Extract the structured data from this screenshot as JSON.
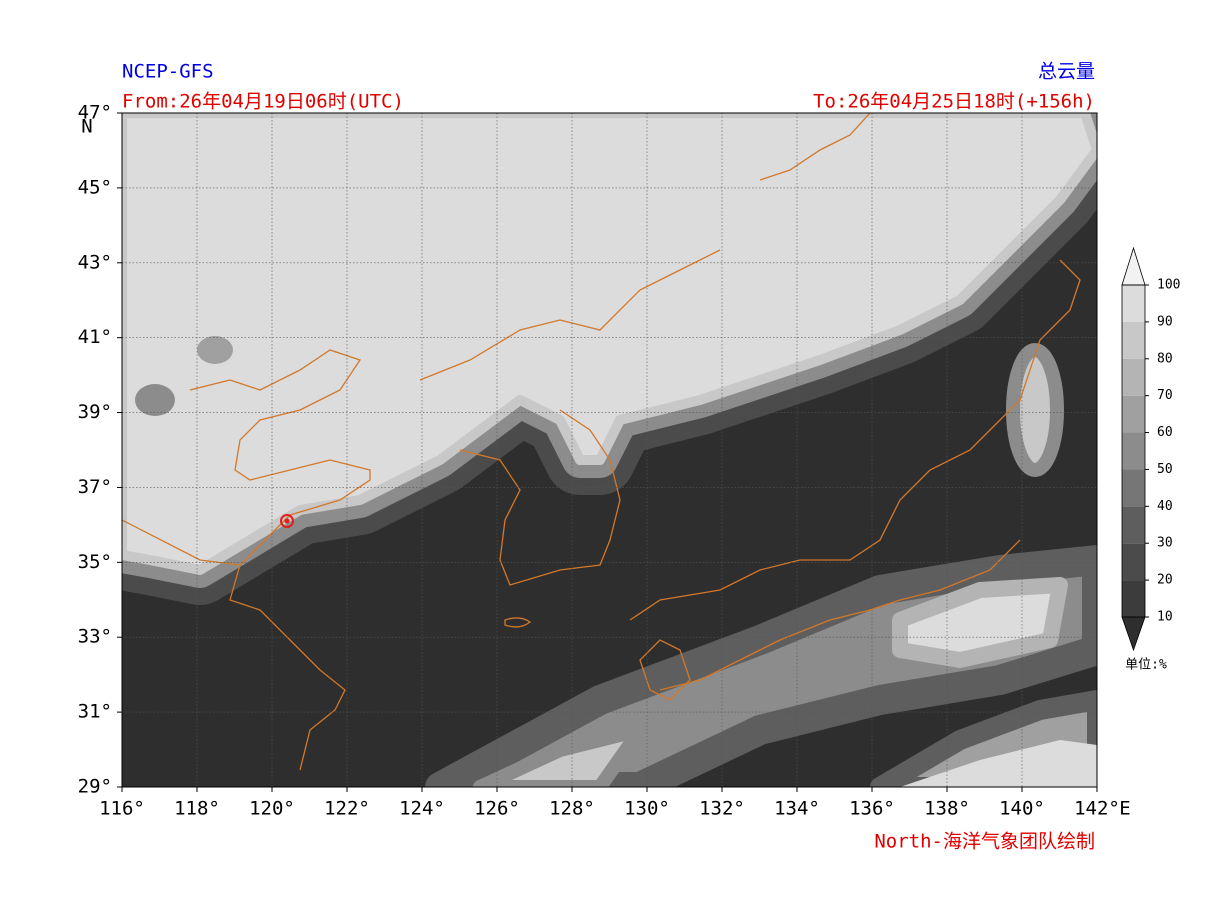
{
  "header": {
    "model": "NCEP-GFS",
    "variable": "总云量",
    "from": "From:26年04月19日06时(UTC)",
    "to": "To:26年04月25日18时(+156h)"
  },
  "map": {
    "xlim": [
      116,
      142
    ],
    "ylim": [
      29,
      47
    ],
    "xticks": [
      {
        "value": 116,
        "label": "116°"
      },
      {
        "value": 118,
        "label": "118°"
      },
      {
        "value": 120,
        "label": "120°"
      },
      {
        "value": 122,
        "label": "122°"
      },
      {
        "value": 124,
        "label": "124°"
      },
      {
        "value": 126,
        "label": "126°"
      },
      {
        "value": 128,
        "label": "128°"
      },
      {
        "value": 130,
        "label": "130°"
      },
      {
        "value": 132,
        "label": "132°"
      },
      {
        "value": 134,
        "label": "134°"
      },
      {
        "value": 136,
        "label": "136°"
      },
      {
        "value": 138,
        "label": "138°"
      },
      {
        "value": 140,
        "label": "140°"
      },
      {
        "value": 142,
        "label": "142°"
      }
    ],
    "yticks": [
      {
        "value": 29,
        "label": "29°"
      },
      {
        "value": 31,
        "label": "31°"
      },
      {
        "value": 33,
        "label": "33°"
      },
      {
        "value": 35,
        "label": "35°"
      },
      {
        "value": 37,
        "label": "37°"
      },
      {
        "value": 39,
        "label": "39°"
      },
      {
        "value": 41,
        "label": "41°"
      },
      {
        "value": 43,
        "label": "43°"
      },
      {
        "value": 45,
        "label": "45°"
      },
      {
        "value": 47,
        "label": "47°"
      }
    ],
    "x_axis_label": "E",
    "y_axis_label": "N",
    "grid": true
  },
  "colorbar": {
    "levels": [
      10,
      20,
      30,
      40,
      50,
      60,
      70,
      80,
      90,
      100
    ],
    "colors": [
      "#3c3c3c",
      "#4b4b4b",
      "#5e5e5e",
      "#767676",
      "#8c8c8c",
      "#a0a0a0",
      "#b4b4b4",
      "#c8c8c8",
      "#dcdcdc"
    ],
    "unit": "单位:%"
  },
  "credit": "North-海洋气象团队绘制"
}
